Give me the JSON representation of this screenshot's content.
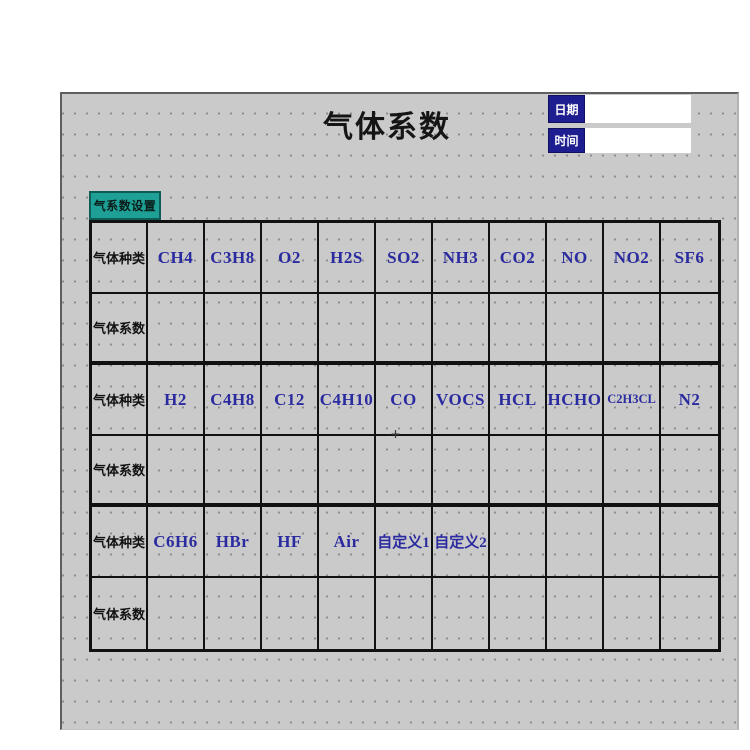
{
  "window": {
    "title": "气体系数"
  },
  "header": {
    "date_label": "日期",
    "time_label": "时间",
    "date_value": "",
    "time_value": ""
  },
  "tab": {
    "label": "气系数设置"
  },
  "table": {
    "row_label_type": "气体种类",
    "row_label_coeff": "气体系数",
    "pairs": [
      {
        "gases": [
          "CH4",
          "C3H8",
          "O2",
          "H2S",
          "SO2",
          "NH3",
          "CO2",
          "NO",
          "NO2",
          "SF6"
        ],
        "coeffs": [
          "",
          "",
          "",
          "",
          "",
          "",
          "",
          "",
          "",
          ""
        ]
      },
      {
        "gases": [
          "H2",
          "C4H8",
          "C12",
          "C4H10",
          "CO",
          "VOCS",
          "HCL",
          "HCHO",
          "C2H3CL",
          "N2"
        ],
        "coeffs": [
          "",
          "",
          "",
          "",
          "",
          "",
          "",
          "",
          "",
          ""
        ]
      },
      {
        "gases": [
          "C6H6",
          "HBr",
          "HF",
          "Air",
          "自定义1",
          "自定义2",
          "",
          "",
          "",
          ""
        ],
        "coeffs": [
          "",
          "",
          "",
          "",
          "",
          "",
          "",
          "",
          "",
          ""
        ]
      }
    ]
  },
  "cursor": {
    "glyph": "+"
  },
  "colors": {
    "canvas_bg": "#cacaca",
    "grid_dot": "#8a8a8a",
    "table_border": "#111111",
    "gas_text": "#2b2ba0",
    "label_text": "#111111",
    "tab_bg": "#1fa096",
    "tab_border": "#0d5c55",
    "datetime_bg": "#1e1e90",
    "datetime_text": "#ffffff"
  }
}
